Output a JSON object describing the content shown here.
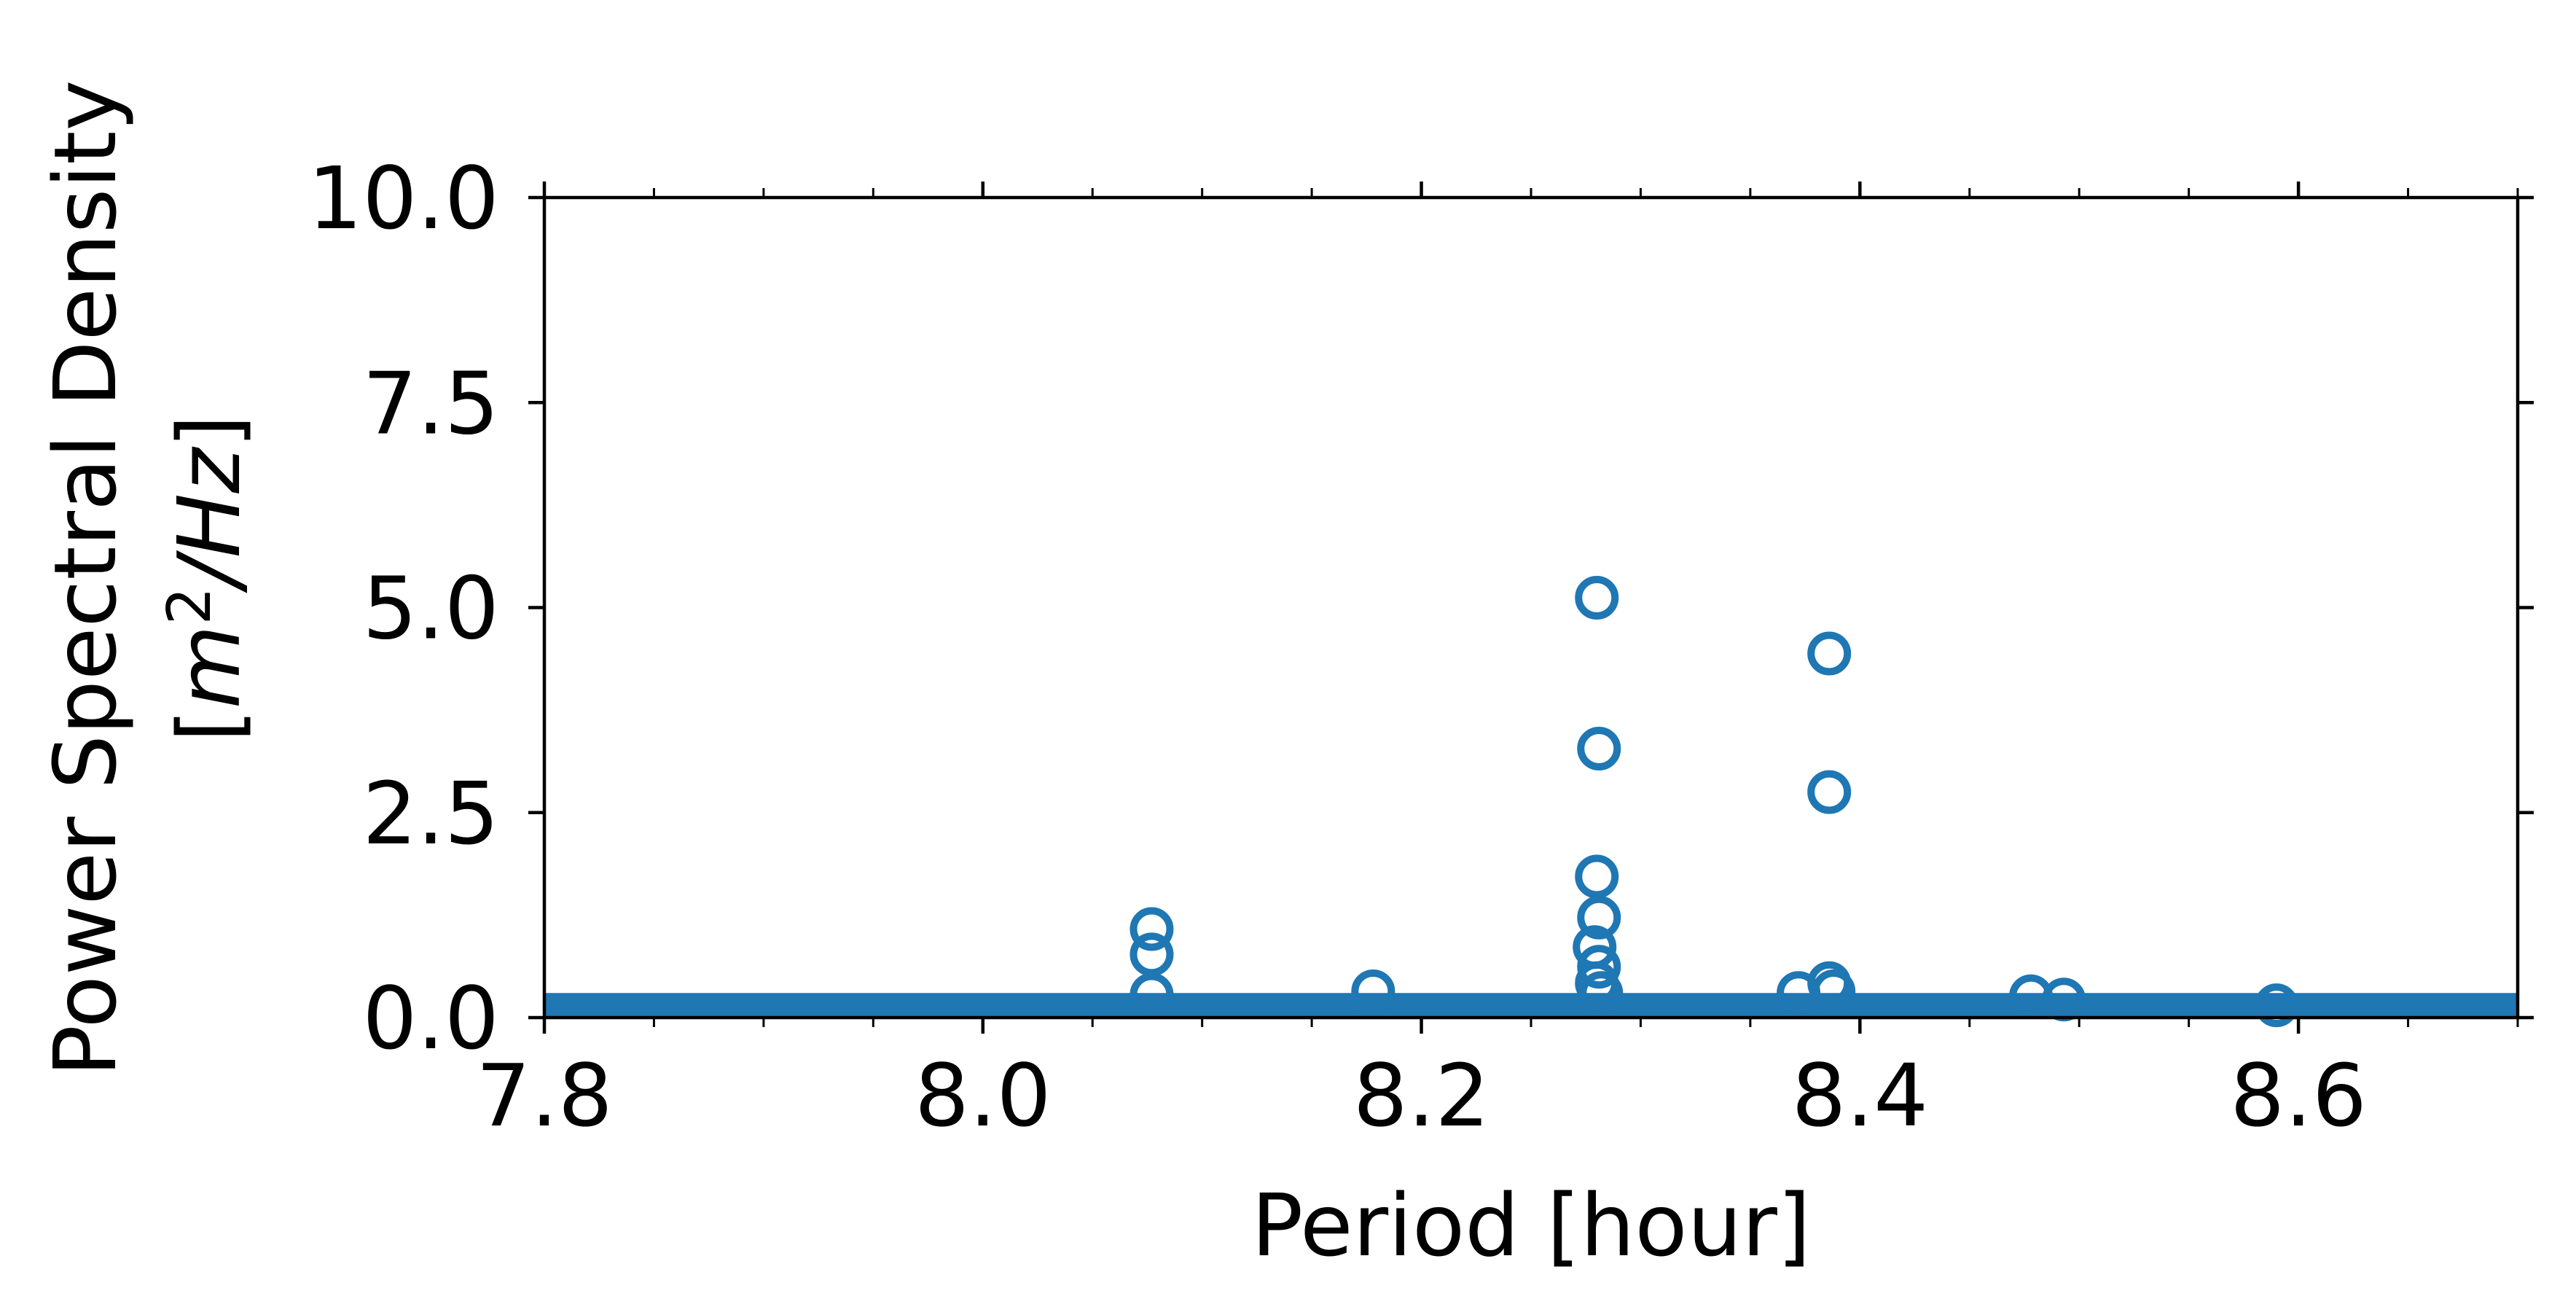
{
  "chart_data": {
    "type": "scatter",
    "title": "",
    "xlabel": "Period [hour]",
    "ylabel_line1": "Power Spectral Density",
    "ylabel_line2_unit": {
      "open": "[",
      "base": "m",
      "exponent": "2",
      "rest": "/Hz",
      "close": "]"
    },
    "xlim": [
      7.8,
      8.7
    ],
    "ylim": [
      0.0,
      10.0
    ],
    "x_ticks": [
      7.8,
      8.0,
      8.2,
      8.4,
      8.6
    ],
    "x_tick_labels": [
      "7.8",
      "8.0",
      "8.2",
      "8.4",
      "8.6"
    ],
    "x_minor_step": 0.05,
    "y_ticks": [
      0.0,
      2.5,
      5.0,
      7.5,
      10.0
    ],
    "y_tick_labels": [
      "0.0",
      "2.5",
      "5.0",
      "7.5",
      "10.0"
    ],
    "grid": false,
    "legend": "none",
    "color": "#1f77b4",
    "marker": "open-circle",
    "baseline": {
      "description": "dense band of markers along zero",
      "y_range": [
        0.0,
        0.3
      ]
    },
    "points": [
      {
        "x": 8.077,
        "y": 1.08
      },
      {
        "x": 8.077,
        "y": 0.77
      },
      {
        "x": 8.077,
        "y": 0.28
      },
      {
        "x": 8.178,
        "y": 0.32
      },
      {
        "x": 8.28,
        "y": 5.12
      },
      {
        "x": 8.281,
        "y": 3.28
      },
      {
        "x": 8.28,
        "y": 1.72
      },
      {
        "x": 8.281,
        "y": 1.22
      },
      {
        "x": 8.279,
        "y": 0.86
      },
      {
        "x": 8.281,
        "y": 0.62
      },
      {
        "x": 8.28,
        "y": 0.42
      },
      {
        "x": 8.282,
        "y": 0.3
      },
      {
        "x": 8.386,
        "y": 4.44
      },
      {
        "x": 8.386,
        "y": 2.75
      },
      {
        "x": 8.372,
        "y": 0.3
      },
      {
        "x": 8.386,
        "y": 0.42
      },
      {
        "x": 8.388,
        "y": 0.32
      },
      {
        "x": 8.478,
        "y": 0.26
      },
      {
        "x": 8.493,
        "y": 0.22
      },
      {
        "x": 8.59,
        "y": 0.15
      }
    ]
  }
}
